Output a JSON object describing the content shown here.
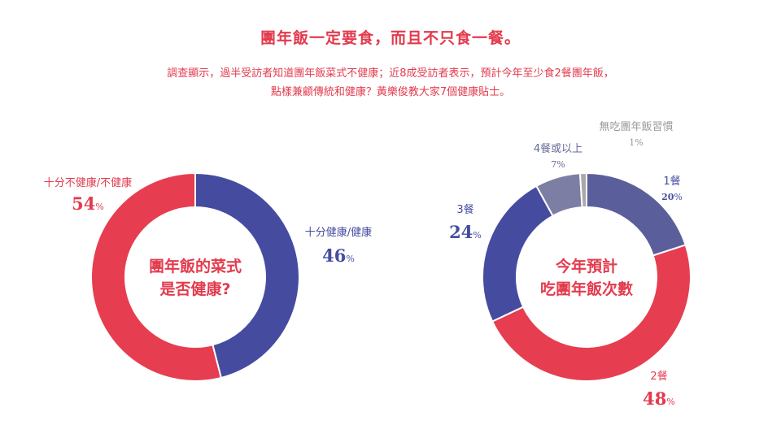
{
  "header": {
    "title": "團年飯一定要食，而且不只食一餐。",
    "subtitle_line1": "調查顯示，過半受訪者知道團年飯菜式不健康；近8成受訪者表示，預計今年至少食2餐團年飯，",
    "subtitle_line2": "點樣兼顧傳統和健康？黃樂俊教大家7個健康貼士。"
  },
  "chart_data": [
    {
      "type": "pie",
      "center_label": [
        "團年飯的菜式",
        "是否健康?"
      ],
      "slices": [
        {
          "label": "十分健康/健康",
          "value": 46,
          "display": "46",
          "color": "#454ca0"
        },
        {
          "label": "十分不健康/不健康",
          "value": 54,
          "display": "54",
          "color": "#e63e50"
        }
      ],
      "unit": "%"
    },
    {
      "type": "pie",
      "center_label": [
        "今年預計",
        "吃團年飯次數"
      ],
      "slices": [
        {
          "label": "1餐",
          "value": 20,
          "display": "20",
          "color": "#5a5f9b"
        },
        {
          "label": "2餐",
          "value": 48,
          "display": "48",
          "color": "#e63e50"
        },
        {
          "label": "3餐",
          "value": 24,
          "display": "24",
          "color": "#454ca0"
        },
        {
          "label": "4餐或以上",
          "value": 7,
          "display": "7",
          "color": "#7c7fa3"
        },
        {
          "label": "無吃團年飯習慣",
          "value": 1,
          "display": "1",
          "color": "#a9a9a9"
        }
      ],
      "unit": "%"
    }
  ]
}
